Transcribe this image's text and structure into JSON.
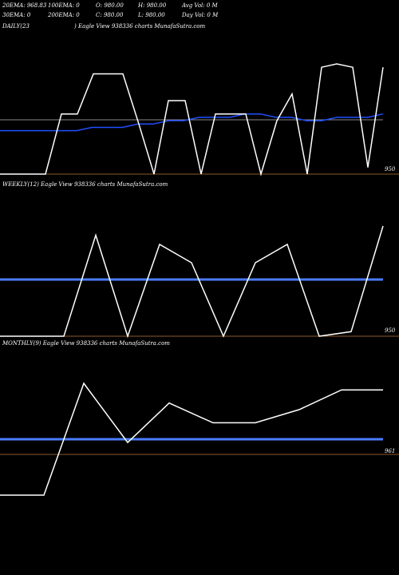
{
  "header": {
    "ema20": "20EMA: 968.83",
    "ema100": "100EMA: 0",
    "open": "O: 980.00",
    "high": "H: 980.00",
    "avg_vol": "Avg Vol: 0  M",
    "ema30": "30EMA: 0",
    "ema200": "200EMA: 0",
    "close": "C: 980.00",
    "low": "L: 980.00",
    "day_vol": "Day Vol: 0  M"
  },
  "colors": {
    "background": "#000000",
    "price_line": "#ffffff",
    "ema_line": "#1f4fff",
    "band_line": "#4a7dff",
    "ref_line": "#8b5a2b",
    "grey_line": "#888888"
  },
  "panels": [
    {
      "title_left": "DAILY(23",
      "title_right": ") Eagle   View  938336  charts MunafaSutra.com",
      "axis_label": "950"
    },
    {
      "title_left": "WEEKLY(12) Eagle   View  938336  charts MunafaSutra.com",
      "axis_label": "950"
    },
    {
      "title_left": "MONTHLY(9) Eagle   View  938336  charts MunafaSutra.com",
      "axis_label": "961"
    }
  ],
  "chart_data": [
    {
      "type": "line",
      "title": "DAILY(23) Eagle View 938336 charts MunafaSutra.com",
      "axis_label": "950",
      "series": [
        {
          "values": [
            950,
            950,
            950,
            950,
            968,
            968,
            980,
            980,
            980,
            965,
            950,
            972,
            972,
            950,
            968,
            968,
            968,
            950,
            966,
            974,
            950,
            982,
            983,
            982,
            952,
            982
          ]
        },
        {
          "values": [
            963,
            963,
            963,
            963,
            963,
            963,
            964,
            964,
            964,
            965,
            965,
            966,
            966,
            967,
            967,
            967,
            968,
            968,
            967,
            967,
            966,
            966,
            967,
            967,
            967,
            968
          ]
        }
      ]
    },
    {
      "type": "line",
      "title": "WEEKLY(12) Eagle View 938336 charts MunafaSutra.com",
      "axis_label": "950",
      "series": [
        {
          "values": [
            950,
            950,
            950,
            972,
            950,
            970,
            966,
            950,
            966,
            970,
            950,
            951,
            974
          ]
        }
      ]
    },
    {
      "type": "line",
      "title": "MONTHLY(9) Eagle View 938336 charts MunafaSutra.com",
      "axis_label": "961",
      "series": [
        {
          "values": [
            954,
            954,
            971,
            962,
            968,
            965,
            965,
            967,
            970,
            970
          ]
        }
      ]
    }
  ]
}
